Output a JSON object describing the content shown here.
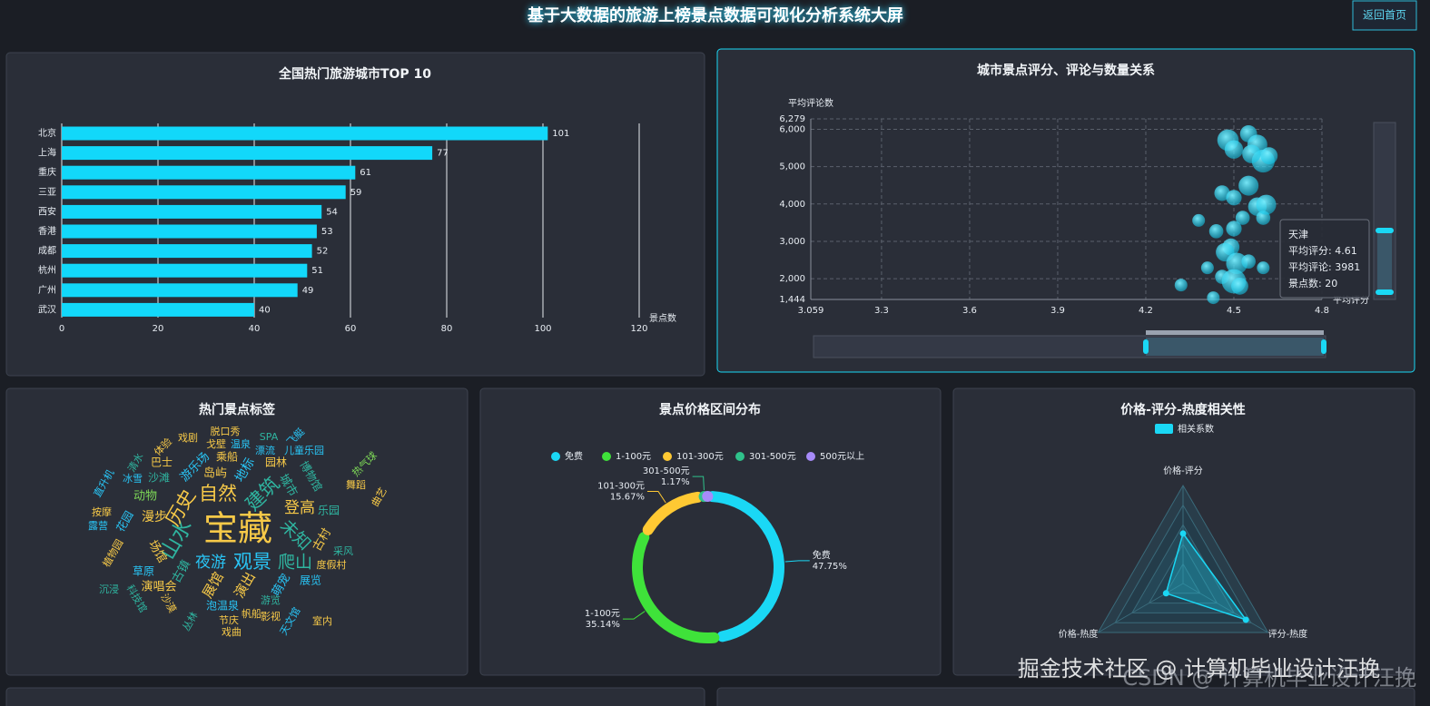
{
  "header": {
    "title": "基于大数据的旅游上榜景点数据可视化分析系统大屏",
    "button": "返回首页"
  },
  "chart_data": [
    {
      "type": "bar",
      "title": "全国热门旅游城市TOP 10",
      "categories": [
        "北京",
        "上海",
        "重庆",
        "三亚",
        "西安",
        "香港",
        "成都",
        "杭州",
        "广州",
        "武汉"
      ],
      "values": [
        101,
        77,
        61,
        59,
        54,
        53,
        52,
        51,
        49,
        40
      ],
      "color": "#12d8fa",
      "x_label": "景点数",
      "xlim": [
        0,
        120
      ],
      "xticks": [
        0,
        20,
        40,
        60,
        80,
        100,
        120
      ],
      "grid": true
    },
    {
      "type": "scatter",
      "title": "城市景点评分、评论与数量关系",
      "x_label": "平均评分",
      "y_label": "平均评论数",
      "color": "#1ad8f5",
      "x": [
        4.48,
        4.5,
        4.55,
        4.58,
        4.6,
        4.56,
        4.62,
        4.46,
        4.55,
        4.5,
        4.58,
        4.6,
        4.53,
        4.38,
        4.44,
        4.5,
        4.49,
        4.47,
        4.51,
        4.55,
        4.6,
        4.41,
        4.32,
        4.46,
        4.5,
        4.52,
        4.43,
        4.61
      ],
      "values": [
        5710,
        5460,
        5880,
        5590,
        5150,
        5340,
        5290,
        4290,
        4490,
        4170,
        3930,
        3630,
        3630,
        3560,
        3270,
        3340,
        2850,
        2710,
        2410,
        2460,
        2290,
        2290,
        1830,
        2050,
        1930,
        1800,
        1490,
        3981
      ],
      "sizes": [
        22,
        18,
        16,
        20,
        24,
        18,
        16,
        14,
        20,
        14,
        18,
        12,
        12,
        10,
        12,
        14,
        16,
        18,
        22,
        12,
        10,
        10,
        10,
        12,
        26,
        16,
        10,
        20
      ],
      "xlim": [
        3.059,
        4.8
      ],
      "xticks": [
        3.059,
        3.3,
        3.6,
        3.9,
        4.2,
        4.5,
        4.8
      ],
      "ylim": [
        1444,
        6279
      ],
      "yticks": [
        {
          "value": 1444,
          "label": "1,444"
        },
        {
          "value": 2000,
          "label": "2,000"
        },
        {
          "value": 3000,
          "label": "3,000"
        },
        {
          "value": 4000,
          "label": "4,000"
        },
        {
          "value": 5000,
          "label": "5,000"
        },
        {
          "value": 6000,
          "label": "6,000"
        },
        {
          "value": 6279,
          "label": "6,279"
        }
      ],
      "grid": true,
      "tooltip": {
        "title": "天津",
        "lines": [
          "平均评分: 4.61",
          "平均评论: 3981",
          "景点数: 20"
        ]
      }
    },
    {
      "type": "wordcloud",
      "title": "热门景点标签",
      "colors": [
        "#f7c948",
        "#29c5f6",
        "#2fb5a0",
        "#7ed957"
      ],
      "words": [
        "宝藏",
        "观景",
        "山水",
        "自然",
        "历史",
        "建筑",
        "夜游",
        "爬山",
        "未知",
        "登高",
        "展馆",
        "演出",
        "漫步",
        "古镇",
        "动物",
        "岛屿",
        "地标",
        "游乐场",
        "城市",
        "博物馆",
        "乐园",
        "古村",
        "度假村",
        "展览",
        "萌宠",
        "泡温泉",
        "游览",
        "演唱会",
        "草原",
        "场馆",
        "花园",
        "巴士",
        "冰雪",
        "沙滩",
        "戏剧",
        "脱口秀",
        "戈壁",
        "温泉",
        "乘船",
        "SPA",
        "漂流",
        "园林",
        "儿童乐园",
        "飞艇",
        "热气球",
        "舞蹈",
        "曲艺",
        "采风",
        "室内",
        "天文馆",
        "影视",
        "戏曲",
        "节庆",
        "帆船",
        "丛林",
        "沙漠",
        "科技馆",
        "沉浸",
        "植物园",
        "按摩",
        "露营",
        "直升机",
        "清水",
        "体验"
      ]
    },
    {
      "type": "pie",
      "title": "景点价格区间分布",
      "categories": [
        "免费",
        "1-100元",
        "101-300元",
        "301-500元",
        "500元以上"
      ],
      "values": [
        47.75,
        35.14,
        15.67,
        1.17,
        0.27
      ],
      "value_labels": [
        "47.75%",
        "35.14%",
        "15.67%",
        "1.17%",
        null
      ],
      "colors": [
        "#1ad8f5",
        "#3fe23a",
        "#ffc933",
        "#2fc28b",
        "#a78bfa"
      ]
    },
    {
      "type": "radar",
      "title": "价格-评分-热度相关性",
      "indicators": [
        "价格-评分",
        "评分-热度",
        "价格-热度"
      ],
      "rlim": [
        0,
        1
      ],
      "series": [
        {
          "name": "相关系数",
          "color": "#1ad8f5",
          "values": [
            0.51,
            0.74,
            0.2
          ]
        }
      ]
    }
  ],
  "watermark": [
    "掘金技术社区 @ 计算机毕业设计汪挽",
    "CSDN @ 计算机毕业设计汪挽"
  ]
}
